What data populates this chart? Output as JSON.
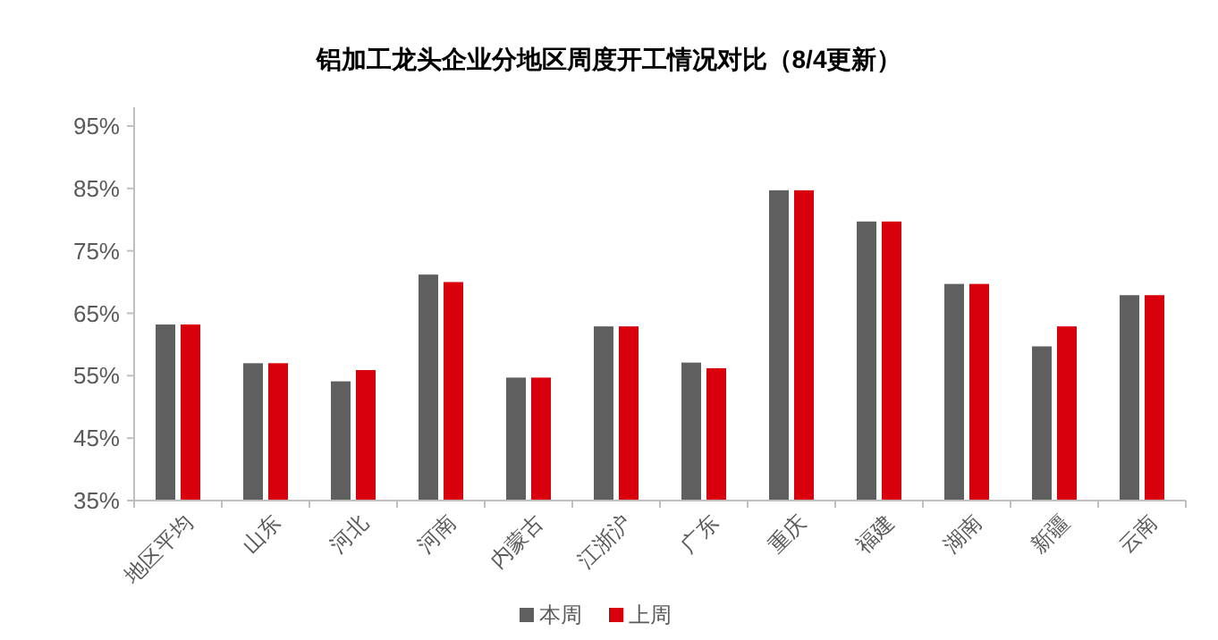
{
  "chart_data": {
    "type": "bar",
    "title": "铝加工龙头企业分地区周度开工情况对比（8/4更新）",
    "categories": [
      "地区平均",
      "山东",
      "河北",
      "河南",
      "内蒙古",
      "江浙沪",
      "广东",
      "重庆",
      "福建",
      "湖南",
      "新疆",
      "云南"
    ],
    "series": [
      {
        "name": "本周",
        "color": "#5f5f5f",
        "values": [
          63.2,
          57.0,
          54.1,
          71.2,
          54.7,
          62.9,
          57.1,
          84.7,
          79.7,
          69.7,
          59.7,
          67.9
        ]
      },
      {
        "name": "上周",
        "color": "#d9000d",
        "values": [
          63.2,
          57.0,
          55.9,
          70.0,
          54.7,
          62.9,
          56.2,
          84.7,
          79.7,
          69.7,
          62.9,
          67.9
        ]
      }
    ],
    "ylim": [
      35,
      98
    ],
    "yticks": [
      {
        "value": 35,
        "label": "35%"
      },
      {
        "value": 45,
        "label": "45%"
      },
      {
        "value": 55,
        "label": "55%"
      },
      {
        "value": 65,
        "label": "65%"
      },
      {
        "value": 75,
        "label": "75%"
      },
      {
        "value": 85,
        "label": "85%"
      },
      {
        "value": 95,
        "label": "95%"
      }
    ],
    "legend": "bottom"
  }
}
